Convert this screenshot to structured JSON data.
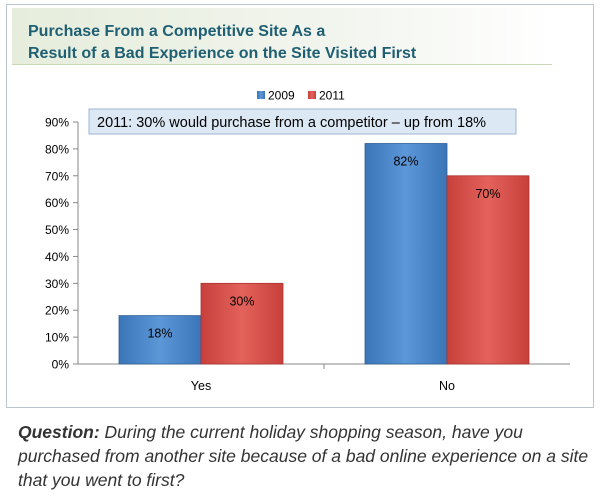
{
  "title": {
    "line1": "Purchase From a Competitive Site As a",
    "line2": "Result of a Bad Experience on the Site Visited First"
  },
  "annotation": "2011: 30% would purchase from a competitor – up from 18%",
  "caption": {
    "label": "Question:",
    "text": "During the current holiday shopping season, have you purchased from another site because of a bad online experience on a site that you went to first?"
  },
  "colors": {
    "2009": "#4a86c8",
    "2011": "#d9504a"
  },
  "chart_data": {
    "type": "bar",
    "categories": [
      "Yes",
      "No"
    ],
    "series": [
      {
        "name": "2009",
        "values": [
          18,
          82
        ],
        "labels": [
          "18%",
          "82%"
        ]
      },
      {
        "name": "2011",
        "values": [
          30,
          70
        ],
        "labels": [
          "30%",
          "70%"
        ]
      }
    ],
    "ylim": [
      0,
      90
    ],
    "yticks": [
      0,
      10,
      20,
      30,
      40,
      50,
      60,
      70,
      80,
      90
    ],
    "ytick_labels": [
      "0%",
      "10%",
      "20%",
      "30%",
      "40%",
      "50%",
      "60%",
      "70%",
      "80%",
      "90%"
    ],
    "legend": "top-center",
    "grid": false
  }
}
